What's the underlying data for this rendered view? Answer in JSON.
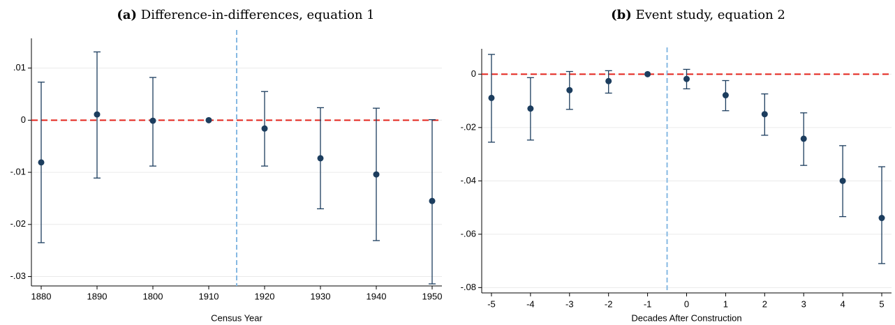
{
  "chart_data": [
    {
      "type": "errorbar",
      "panel": "(a)",
      "title": "Difference-in-differences, equation 1",
      "xlabel": "Census Year",
      "categories": [
        "1880",
        "1890",
        "1800",
        "1910",
        "1920",
        "1930",
        "1940",
        "1950"
      ],
      "values": [
        -0.0081,
        0.0011,
        -0.0001,
        0,
        -0.0016,
        -0.0073,
        -0.0104,
        -0.0155
      ],
      "lower": [
        -0.0235,
        -0.0111,
        -0.0088,
        null,
        -0.0088,
        -0.017,
        -0.0231,
        -0.0314
      ],
      "upper": [
        0.0073,
        0.0131,
        0.0082,
        null,
        0.0055,
        0.0024,
        0.0023,
        0.0001
      ],
      "color": "#1c3d5e",
      "ylim": [
        -0.0318,
        0.0157
      ],
      "yticks": [
        {
          "value": 0.01,
          "label": ".01"
        },
        0,
        {
          "value": -0.01,
          "label": "-.01"
        },
        {
          "value": -0.02,
          "label": "-.02"
        },
        {
          "value": -0.03,
          "label": "-.03"
        }
      ],
      "hline": 0,
      "hline_color": "#e3231b",
      "vline_color": "#86b9e3",
      "grid": true
    },
    {
      "type": "errorbar",
      "panel": "(b)",
      "title": "Event study, equation 2",
      "xlabel": "Decades After Construction",
      "x": [
        -5,
        -4,
        -3,
        -2,
        -1,
        0,
        1,
        2,
        3,
        4,
        5
      ],
      "values": [
        -0.0089,
        -0.0129,
        -0.006,
        -0.0026,
        0,
        -0.0018,
        -0.0079,
        -0.015,
        -0.0242,
        -0.04,
        -0.0539
      ],
      "lower": [
        -0.0255,
        -0.0247,
        -0.0132,
        -0.0071,
        null,
        -0.0055,
        -0.0137,
        -0.0229,
        -0.0342,
        -0.0534,
        -0.071
      ],
      "upper": [
        0.0074,
        -0.0013,
        0.001,
        0.0013,
        null,
        0.0018,
        -0.0024,
        -0.0074,
        -0.0145,
        -0.0268,
        -0.0347
      ],
      "color": "#1c3d5e",
      "xlim": [
        -5.25,
        5.25
      ],
      "xticks": [
        -5,
        -4,
        -3,
        -2,
        -1,
        0,
        1,
        2,
        3,
        4,
        5
      ],
      "ylim": [
        -0.082,
        0.0095
      ],
      "yticks": [
        0,
        {
          "value": -0.02,
          "label": "-.02"
        },
        {
          "value": -0.04,
          "label": "-.04"
        },
        {
          "value": -0.06,
          "label": "-.06"
        },
        {
          "value": -0.08,
          "label": "-.08"
        }
      ],
      "hline": 0,
      "vline": -0.5,
      "hline_color": "#e3231b",
      "vline_color": "#86b9e3",
      "grid": true
    }
  ]
}
